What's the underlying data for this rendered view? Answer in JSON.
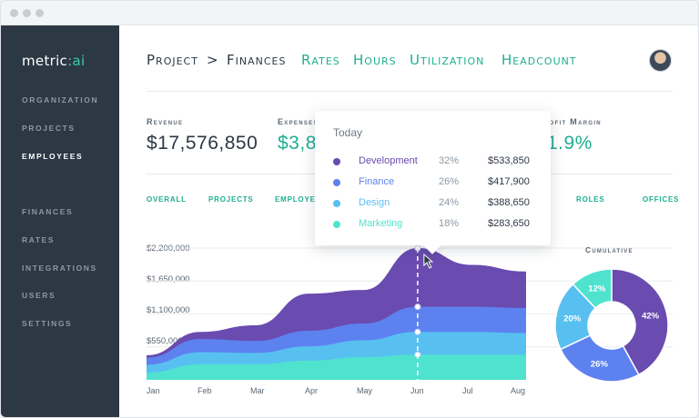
{
  "sidebar": {
    "logo_main": "metric",
    "logo_sep": ":",
    "logo_ai": "ai",
    "items": [
      {
        "label": "ORGANIZATION",
        "active": false
      },
      {
        "label": "PROJECTS",
        "active": false
      },
      {
        "label": "EMPLOYEES",
        "active": true
      },
      {
        "label": "FINANCES",
        "active": false
      },
      {
        "label": "RATES",
        "active": false
      },
      {
        "label": "INTEGRATIONS",
        "active": false
      },
      {
        "label": "USERS",
        "active": false
      },
      {
        "label": "SETTINGS",
        "active": false
      }
    ]
  },
  "header": {
    "crumb_project": "Project",
    "crumb_sep": ">",
    "crumb_current": "Finances",
    "tabs": [
      "Rates",
      "Hours",
      "Utilization",
      "Headcount"
    ]
  },
  "kpis": [
    {
      "label": "Revenue",
      "value": "$17,576,850"
    },
    {
      "label": "Expenses",
      "value": "$3,8"
    },
    {
      "label": "rofit Margin",
      "value": "1.9%"
    }
  ],
  "subtabs": [
    "OVERALL",
    "PROJECTS",
    "EMPLOYEES",
    "ROLES",
    "OFFICES"
  ],
  "tooltip": {
    "title": "Today",
    "rows": [
      {
        "name": "Development",
        "pct": "32%",
        "value": "$533,850",
        "color": "#6a4bb0"
      },
      {
        "name": "Finance",
        "pct": "26%",
        "value": "$417,900",
        "color": "#5d82f0"
      },
      {
        "name": "Design",
        "pct": "24%",
        "value": "$388,650",
        "color": "#58c0f0"
      },
      {
        "name": "Marketing",
        "pct": "18%",
        "value": "$283,650",
        "color": "#4fe3cf"
      }
    ]
  },
  "colors": {
    "accent": "#1fae90",
    "sidebar_bg": "#2c3844",
    "development": "#6a4bb0",
    "finance": "#5d82f0",
    "design": "#58c0f0",
    "marketing": "#4fe3cf"
  },
  "cumulative_title": "Cumulative",
  "chart_data": [
    {
      "type": "area",
      "stacked": true,
      "x": [
        "Jan",
        "Feb",
        "Mar",
        "Apr",
        "May",
        "Jun",
        "Jul",
        "Aug"
      ],
      "y_ticks": [
        "$2,200,000",
        "$1,650,000",
        "$1,100,000",
        "$550,000"
      ],
      "ylim": [
        0,
        2200000
      ],
      "grid": true,
      "series": [
        {
          "name": "Marketing",
          "values": [
            120000,
            260000,
            260000,
            320000,
            380000,
            420000,
            420000,
            420000
          ]
        },
        {
          "name": "Design",
          "values": [
            130000,
            200000,
            190000,
            240000,
            280000,
            380000,
            380000,
            360000
          ]
        },
        {
          "name": "Finance",
          "values": [
            120000,
            220000,
            200000,
            260000,
            280000,
            420000,
            420000,
            420000
          ]
        },
        {
          "name": "Development",
          "values": [
            40000,
            120000,
            260000,
            620000,
            560000,
            980000,
            700000,
            610000
          ]
        }
      ]
    },
    {
      "type": "pie",
      "donut": true,
      "title": "Cumulative",
      "slices": [
        {
          "label": "42%",
          "value": 42,
          "color": "#6a4bb0"
        },
        {
          "label": "26%",
          "value": 26,
          "color": "#5d82f0"
        },
        {
          "label": "20%",
          "value": 20,
          "color": "#58c0f0"
        },
        {
          "label": "12%",
          "value": 12,
          "color": "#4fe3cf"
        }
      ]
    }
  ]
}
